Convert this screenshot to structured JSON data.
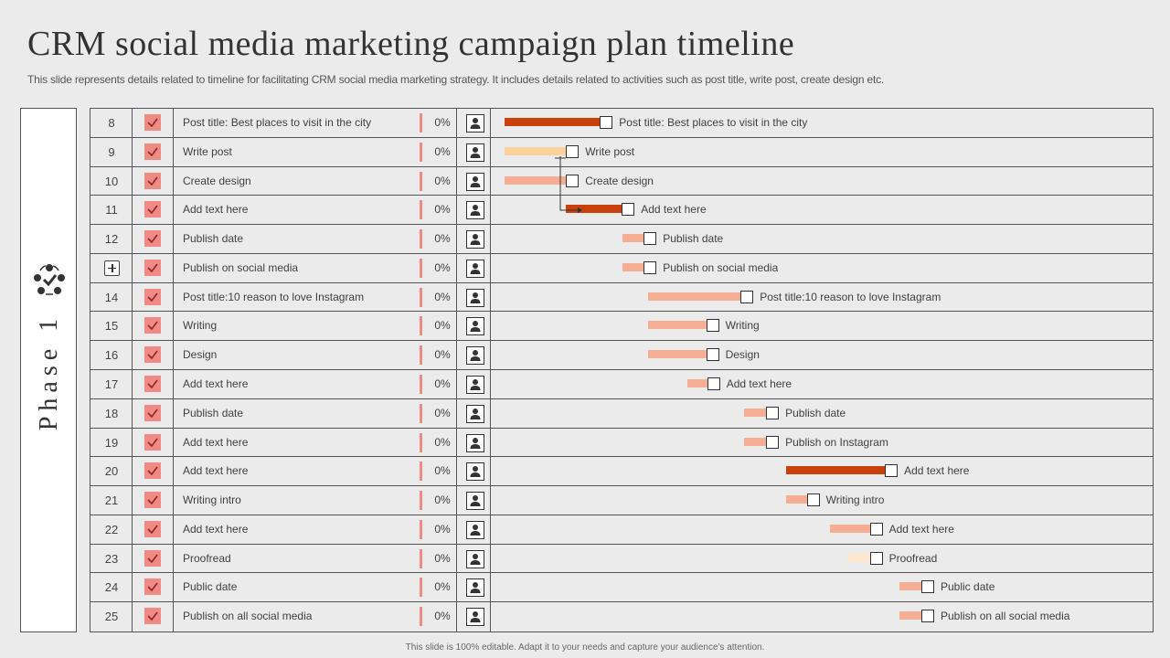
{
  "title": "CRM social media marketing campaign plan timeline",
  "subtitle": "This slide represents details related to timeline for facilitating CRM social media marketing strategy. It includes details related to activities such as post title, write post, create design etc.",
  "phase": {
    "label": "Phase 1",
    "icon": "cycle-people-icon"
  },
  "footer": "This slide is 100% editable. Adapt it to your needs and capture your audience's attention.",
  "colors": {
    "dark": "#c8410a",
    "medium": "#f5ae94",
    "light": "#fbd09a",
    "pale": "#fde6cc",
    "check": "#f08a84"
  },
  "rows": [
    {
      "num": "8",
      "task": "Post title: Best places to visit in the city",
      "pct": "0%",
      "bar_label": "Post title: Best places to visit in the city",
      "start": 0.0,
      "dur": 0.183,
      "color": "dark"
    },
    {
      "num": "9",
      "task": "Write post",
      "pct": "0%",
      "bar_label": "Write post",
      "start": 0.0,
      "dur": 0.118,
      "color": "light"
    },
    {
      "num": "10",
      "task": "Create design",
      "pct": "0%",
      "bar_label": "Create design",
      "start": 0.0,
      "dur": 0.118,
      "color": "medium"
    },
    {
      "num": "11",
      "task": "Add text here",
      "pct": "0%",
      "bar_label": "Add text here",
      "start": 0.118,
      "dur": 0.107,
      "color": "dark"
    },
    {
      "num": "12",
      "task": "Publish date",
      "pct": "0%",
      "bar_label": "Publish date",
      "start": 0.226,
      "dur": 0.041,
      "color": "medium"
    },
    {
      "num": "",
      "task": "Publish on social media",
      "pct": "0%",
      "bar_label": "Publish on social media",
      "start": 0.226,
      "dur": 0.041,
      "color": "medium",
      "expand": true
    },
    {
      "num": "14",
      "task": "Post title:10 reason to love Instagram",
      "pct": "0%",
      "bar_label": "Post title:10 reason to love Instagram",
      "start": 0.275,
      "dur": 0.178,
      "color": "medium"
    },
    {
      "num": "15",
      "task": "Writing",
      "pct": "0%",
      "bar_label": "Writing",
      "start": 0.275,
      "dur": 0.112,
      "color": "medium"
    },
    {
      "num": "16",
      "task": "Design",
      "pct": "0%",
      "bar_label": "Design",
      "start": 0.275,
      "dur": 0.112,
      "color": "medium"
    },
    {
      "num": "17",
      "task": "Add text here",
      "pct": "0%",
      "bar_label": "Add text here",
      "start": 0.35,
      "dur": 0.039,
      "color": "medium"
    },
    {
      "num": "18",
      "task": "Publish date",
      "pct": "0%",
      "bar_label": "Publish date",
      "start": 0.46,
      "dur": 0.042,
      "color": "medium"
    },
    {
      "num": "19",
      "task": "Add text here",
      "pct": "0%",
      "bar_label": "Publish on Instagram",
      "start": 0.46,
      "dur": 0.042,
      "color": "medium"
    },
    {
      "num": "20",
      "task": "Add text here",
      "pct": "0%",
      "bar_label": "Add text here",
      "start": 0.54,
      "dur": 0.19,
      "color": "dark"
    },
    {
      "num": "21",
      "task": "Writing intro",
      "pct": "0%",
      "bar_label": "Writing intro",
      "start": 0.54,
      "dur": 0.04,
      "color": "medium"
    },
    {
      "num": "22",
      "task": "Add text here",
      "pct": "0%",
      "bar_label": "Add text here",
      "start": 0.624,
      "dur": 0.077,
      "color": "medium"
    },
    {
      "num": "23",
      "task": "Proofread",
      "pct": "0%",
      "bar_label": "Proofread",
      "start": 0.658,
      "dur": 0.043,
      "color": "pale"
    },
    {
      "num": "24",
      "task": "Public date",
      "pct": "0%",
      "bar_label": "Public date",
      "start": 0.758,
      "dur": 0.042,
      "color": "medium"
    },
    {
      "num": "25",
      "task": "Publish on all social media",
      "pct": "0%",
      "bar_label": "Publish on all social media",
      "start": 0.758,
      "dur": 0.042,
      "color": "medium"
    }
  ]
}
